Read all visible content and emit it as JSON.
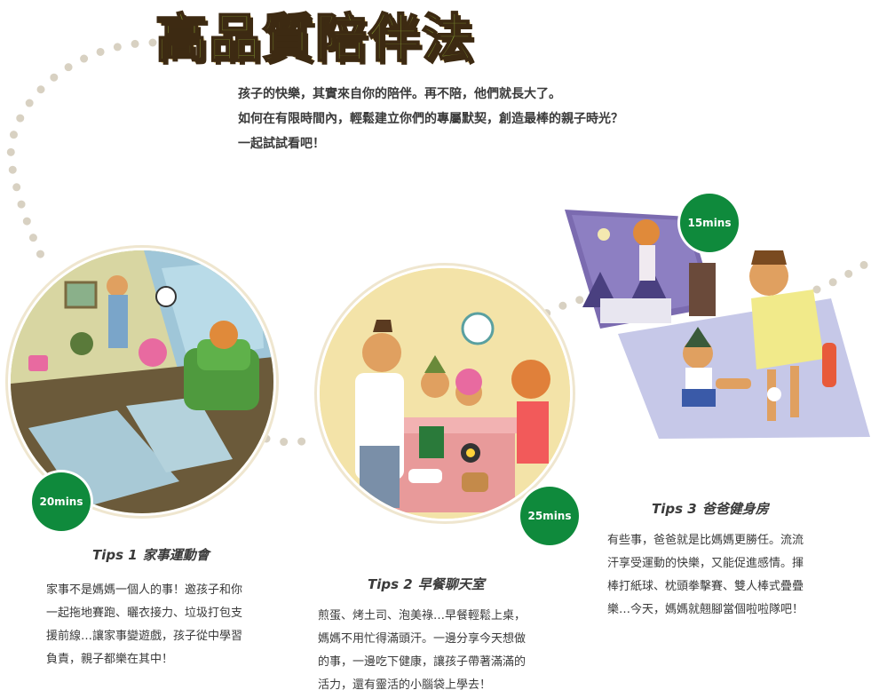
{
  "title": "高品質陪伴法",
  "intro": {
    "lines": [
      "孩子的快樂，其實來自你的陪伴。再不陪，他們就長大了。",
      "如何在有限時間內，輕鬆建立你們的專屬默契，創造最棒的親子時光？",
      "一起試試看吧！"
    ]
  },
  "tips": [
    {
      "number": "Tips 1",
      "name": "家事運動會",
      "duration": "20mins",
      "body": [
        "家事不是媽媽一個人的事！邀孩子和你",
        "一起拖地賽跑、曬衣接力、垃圾打包支",
        "援前線…讓家事變遊戲，孩子從中學習",
        "負責，親子都樂在其中！"
      ]
    },
    {
      "number": "Tips 2",
      "name": "早餐聊天室",
      "duration": "25mins",
      "body": [
        "煎蛋、烤土司、泡美祿…早餐輕鬆上桌，",
        "媽媽不用忙得滿頭汗。一邊分享今天想做",
        "的事，一邊吃下健康，讓孩子帶著滿滿的",
        "活力，還有靈活的小腦袋上學去！"
      ]
    },
    {
      "number": "Tips 3",
      "name": "爸爸健身房",
      "duration": "15mins",
      "body": [
        "有些事，爸爸就是比媽媽更勝任。流流",
        "汗享受運動的快樂，又能促進感情。揮",
        "棒打紙球、枕頭拳擊賽、雙人棒式疊疊",
        "樂…今天，媽媽就翹腳當個啦啦隊吧！"
      ]
    }
  ],
  "colors": {
    "title_fill": "#7a8a2e",
    "title_outline": "#3d2a12",
    "badge": "#0f8a3c",
    "dots": "#d8d1c2"
  }
}
